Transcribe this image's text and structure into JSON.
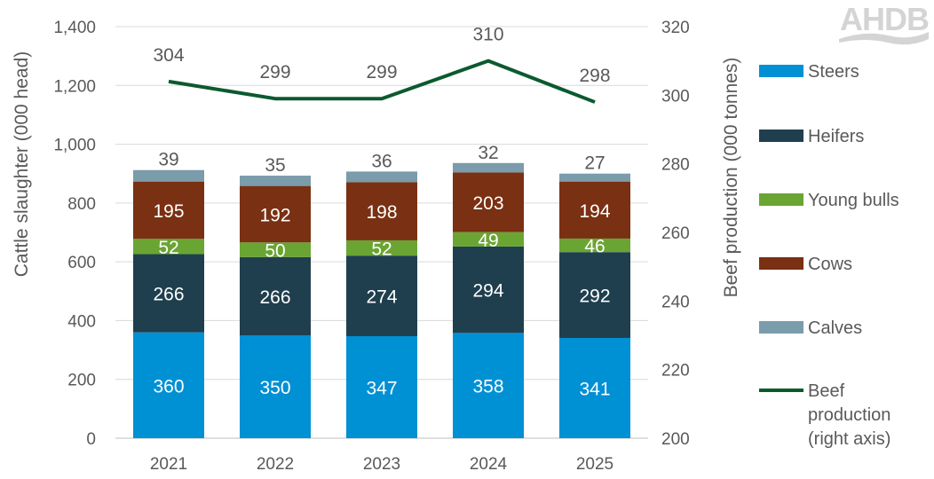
{
  "logo": "AHDB",
  "chart_data": {
    "type": "bar",
    "stacked": true,
    "categories": [
      "2021",
      "2022",
      "2023",
      "2024",
      "2025"
    ],
    "series": [
      {
        "name": "Steers",
        "color": "#0090D4",
        "values": [
          360,
          350,
          347,
          358,
          341
        ],
        "axis": "left"
      },
      {
        "name": "Heifers",
        "color": "#1F3F4F",
        "values": [
          266,
          266,
          274,
          294,
          292
        ],
        "axis": "left"
      },
      {
        "name": "Young bulls",
        "color": "#6AA533",
        "values": [
          52,
          50,
          52,
          49,
          46
        ],
        "axis": "left"
      },
      {
        "name": "Cows",
        "color": "#7A3012",
        "values": [
          195,
          192,
          198,
          203,
          194
        ],
        "axis": "left"
      },
      {
        "name": "Calves",
        "color": "#7A9CAB",
        "values": [
          39,
          35,
          36,
          32,
          27
        ],
        "axis": "left"
      }
    ],
    "line_series": {
      "name": "Beef production (right axis)",
      "name_lines": [
        "Beef",
        "production",
        "(right axis)"
      ],
      "color": "#0B5A2E",
      "values": [
        304,
        299,
        299,
        310,
        298
      ],
      "axis": "right"
    },
    "ylabel": "Cattle slaughter (000 head)",
    "y2label": "Beef production (000 tonnes)",
    "ylim": [
      0,
      1400
    ],
    "y2lim": [
      200,
      320
    ],
    "yticks": [
      "0",
      "200",
      "400",
      "600",
      "800",
      "1,000",
      "1,200",
      "1,400"
    ],
    "y2ticks": [
      "200",
      "220",
      "240",
      "260",
      "280",
      "300",
      "320"
    ],
    "grid": true,
    "legend": "right"
  }
}
